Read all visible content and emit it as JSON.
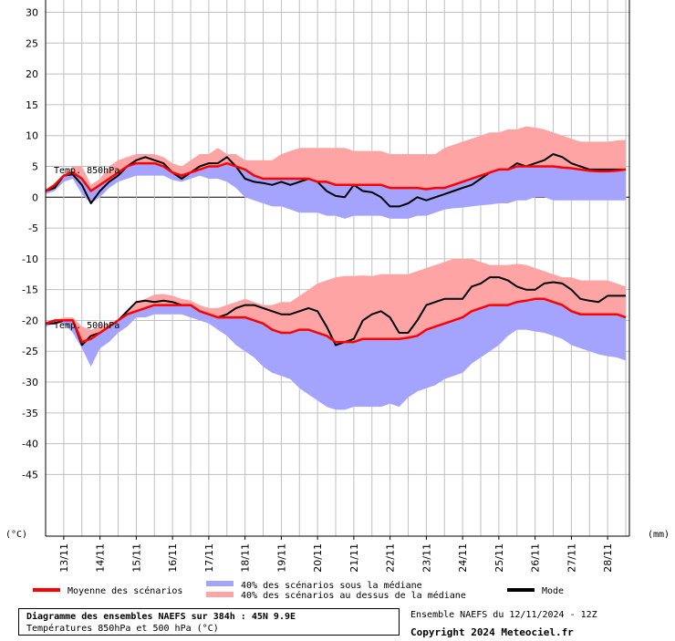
{
  "chart_data": {
    "type": "area",
    "y_unit_label": "(°C)",
    "right_unit_label": "(mm)",
    "ylim": [
      -55,
      32
    ],
    "yticks": [
      30,
      25,
      20,
      15,
      10,
      5,
      0,
      -5,
      -10,
      -15,
      -20,
      -25,
      -30,
      -35,
      -40,
      -45
    ],
    "xlim": [
      0,
      16.1
    ],
    "x_tick_labels": [
      "13/11",
      "14/11",
      "15/11",
      "16/11",
      "17/11",
      "18/11",
      "19/11",
      "20/11",
      "21/11",
      "22/11",
      "23/11",
      "24/11",
      "25/11",
      "26/11",
      "27/11",
      "28/11"
    ],
    "grid": true,
    "annotations": [
      "Temp. 850hPa",
      "Temp. 500hPa"
    ],
    "legend": {
      "mean": "Moyenne des scénarios",
      "below": "40% des scénarios sous la médiane",
      "above": "40% des scénarios au dessus de la médiane",
      "mode": "Mode"
    },
    "colors": {
      "mean": "#ff0000",
      "mode": "#000000",
      "below_band": "#a4a4ff",
      "above_band": "#ffa4a4",
      "grid": "#c0c0c0"
    },
    "x": [
      0,
      0.25,
      0.5,
      0.75,
      1,
      1.25,
      1.5,
      1.75,
      2,
      2.25,
      2.5,
      2.75,
      3,
      3.25,
      3.5,
      3.75,
      4,
      4.25,
      4.5,
      4.75,
      5,
      5.25,
      5.5,
      5.75,
      6,
      6.25,
      6.5,
      6.75,
      7,
      7.25,
      7.5,
      7.75,
      8,
      8.25,
      8.5,
      8.75,
      9,
      9.25,
      9.5,
      9.75,
      10,
      10.25,
      10.5,
      10.75,
      11,
      11.25,
      11.5,
      11.75,
      12,
      12.25,
      12.5,
      12.75,
      13,
      13.25,
      13.5,
      13.75,
      14,
      14.25,
      14.5,
      14.75,
      15,
      15.25,
      15.5,
      15.75,
      16
    ],
    "t850": {
      "above": [
        1,
        2,
        3.5,
        5,
        5,
        2,
        3,
        5,
        6,
        6.5,
        7,
        7,
        7,
        6.5,
        5.5,
        5,
        6,
        7,
        7,
        8,
        7,
        7,
        6,
        6,
        6,
        6,
        7,
        7.5,
        8,
        8,
        8,
        8,
        8,
        8,
        7.5,
        7.5,
        7.5,
        7.5,
        7,
        7,
        7,
        7,
        7,
        7,
        8,
        8.5,
        9,
        9.5,
        10,
        10.5,
        10.5,
        11,
        11,
        11.5,
        11.3,
        11,
        10.5,
        10,
        9.5,
        9,
        9,
        9,
        9,
        9.2,
        9.3
      ],
      "mean": [
        1,
        2,
        3.5,
        4,
        3,
        1,
        2,
        3,
        4,
        5,
        5.5,
        5.5,
        5.5,
        5,
        4,
        3.5,
        4,
        4.5,
        5,
        5,
        5.5,
        5,
        4.5,
        3.5,
        3,
        3,
        3,
        3,
        3,
        3,
        2.5,
        2.5,
        2,
        2,
        2,
        2,
        2,
        2,
        1.5,
        1.5,
        1.5,
        1.5,
        1.3,
        1.5,
        1.5,
        2,
        2.5,
        3,
        3.5,
        4,
        4.5,
        4.5,
        5,
        5,
        5,
        5,
        5,
        4.8,
        4.7,
        4.5,
        4.3,
        4.2,
        4.2,
        4.3,
        4.5
      ],
      "mode": [
        1,
        1.5,
        3.5,
        3.7,
        2,
        -1,
        1,
        2.5,
        3.5,
        5,
        6,
        6.5,
        6,
        5.5,
        4,
        3,
        4,
        5,
        5.5,
        5.5,
        6.5,
        5,
        3,
        2.5,
        2.3,
        2,
        2.5,
        2,
        2.5,
        3,
        2.5,
        1,
        0.2,
        0,
        2,
        1,
        0.8,
        0,
        -1.5,
        -1.5,
        -1,
        0,
        -0.5,
        0,
        0.5,
        1,
        1.5,
        2,
        3,
        4,
        4.5,
        4.5,
        5.5,
        5,
        5.5,
        6,
        7,
        6.5,
        5.5,
        5,
        4.5,
        4.5,
        4.5,
        4.5,
        4.5
      ],
      "below": [
        0.5,
        1,
        2.5,
        3,
        0.5,
        -1,
        0,
        1.5,
        2.5,
        3,
        3.5,
        3.5,
        3.5,
        3.5,
        2.8,
        2.5,
        3,
        3.5,
        3,
        3,
        2.5,
        1.5,
        0,
        -0.5,
        -1,
        -1.5,
        -1.5,
        -2,
        -2.5,
        -2.5,
        -2.5,
        -3,
        -3,
        -3.5,
        -3,
        -3,
        -3,
        -3,
        -3.5,
        -3.5,
        -3.5,
        -3,
        -3,
        -2.5,
        -2,
        -1.8,
        -1.7,
        -1.5,
        -1.3,
        -1.2,
        -1,
        -1,
        -0.5,
        -0.5,
        0,
        0,
        -0.5,
        -0.5,
        -0.5,
        -0.5,
        -0.5,
        -0.5,
        -0.5,
        -0.5,
        -0.5
      ]
    },
    "t500": {
      "above": [
        -20.5,
        -20,
        -19.5,
        -19.5,
        -21,
        -21.5,
        -21,
        -20.5,
        -20,
        -18.5,
        -17,
        -16.5,
        -15.8,
        -15.7,
        -16,
        -16.5,
        -16.8,
        -17.5,
        -18,
        -18,
        -17.5,
        -17,
        -16.5,
        -17,
        -17.5,
        -17.5,
        -17,
        -17,
        -16,
        -15,
        -14,
        -13.5,
        -13,
        -12.8,
        -12.8,
        -12.7,
        -12.8,
        -12.5,
        -12.5,
        -12.5,
        -12.5,
        -12,
        -11.5,
        -11,
        -10.5,
        -10,
        -10,
        -10,
        -10.5,
        -11,
        -11,
        -11,
        -10.8,
        -11,
        -11.5,
        -12,
        -12.5,
        -13,
        -13,
        -13.5,
        -13.5,
        -13.5,
        -13.5,
        -14,
        -14.5
      ],
      "mode": [
        -20.5,
        -20.5,
        -20,
        -20,
        -24,
        -22.5,
        -22,
        -21,
        -20,
        -18.5,
        -17,
        -16.8,
        -17,
        -16.8,
        -17,
        -17.5,
        -17.5,
        -18.5,
        -19,
        -19.5,
        -19,
        -18,
        -17.5,
        -17.5,
        -18,
        -18.5,
        -19,
        -19,
        -18.5,
        -18,
        -18.5,
        -21,
        -24,
        -23.5,
        -23,
        -20,
        -19,
        -18.5,
        -19.5,
        -22,
        -22,
        -20,
        -17.5,
        -17,
        -16.5,
        -16.5,
        -16.5,
        -14.5,
        -14,
        -13,
        -13,
        -13.5,
        -14.5,
        -15,
        -15,
        -14,
        -13.8,
        -14,
        -15,
        -16.5,
        -16.8,
        -17,
        -16,
        -16,
        -16
      ],
      "mean": [
        -20.5,
        -20,
        -20,
        -20,
        -23.5,
        -23,
        -22,
        -21,
        -20,
        -19,
        -18.5,
        -18,
        -17.5,
        -17.5,
        -17.5,
        -17.5,
        -17.5,
        -18.5,
        -19,
        -19.5,
        -19.5,
        -19.5,
        -19.5,
        -20,
        -20.5,
        -21.5,
        -22,
        -22,
        -21.5,
        -21.5,
        -22,
        -22.5,
        -23.5,
        -23.5,
        -23.5,
        -23,
        -23,
        -23,
        -23,
        -23,
        -22.8,
        -22.5,
        -21.5,
        -21,
        -20.5,
        -20,
        -19.5,
        -18.5,
        -18,
        -17.5,
        -17.5,
        -17.5,
        -17,
        -16.8,
        -16.5,
        -16.5,
        -17,
        -17.5,
        -18.5,
        -19,
        -19,
        -19,
        -19,
        -19,
        -19.5
      ],
      "below": [
        -21,
        -20.5,
        -20.5,
        -22,
        -24.5,
        -27.5,
        -24.5,
        -23.5,
        -22,
        -21,
        -19.5,
        -19.5,
        -19,
        -19,
        -19,
        -19,
        -19.5,
        -20,
        -20.5,
        -21.5,
        -22.5,
        -24,
        -25,
        -26,
        -27.5,
        -28.5,
        -29,
        -29.5,
        -31,
        -32,
        -33,
        -34,
        -34.5,
        -34.5,
        -34,
        -34,
        -34,
        -34,
        -33.5,
        -34,
        -32.5,
        -31.5,
        -31,
        -30.5,
        -29.5,
        -29,
        -28.5,
        -27,
        -26,
        -25,
        -24,
        -22.5,
        -21.5,
        -21.5,
        -21.8,
        -22,
        -22.5,
        -23,
        -24,
        -24.5,
        -25,
        -25.5,
        -25.8,
        -26,
        -26.5
      ]
    }
  },
  "footer": {
    "title": "Diagramme des ensembles NAEFS sur 384h : 45N 9.9E",
    "subtitle": "Températures 850hPa et 500 hPa (°C)",
    "run": "Ensemble NAEFS du 12/11/2024 - 12Z",
    "copyright": "Copyright 2024 Meteociel.fr"
  }
}
